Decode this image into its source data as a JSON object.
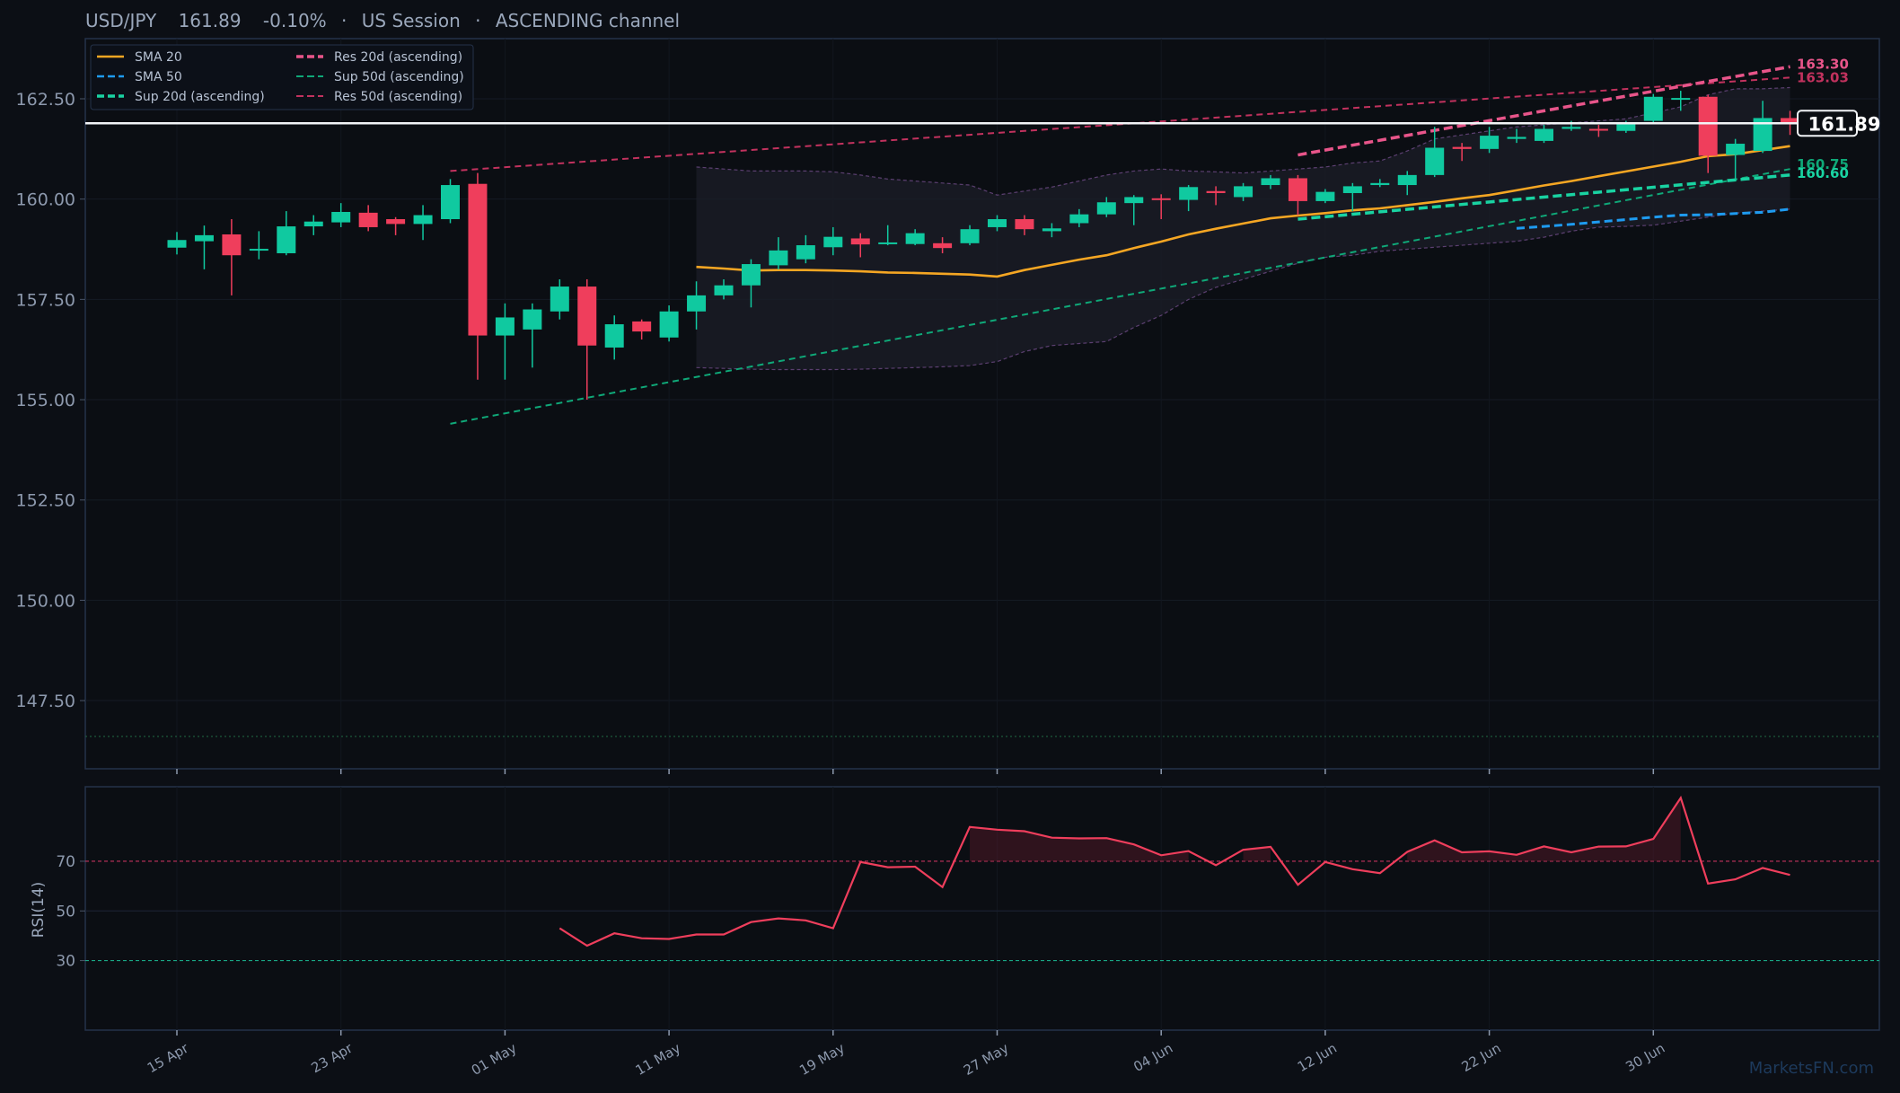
{
  "header": {
    "symbol": "USD/JPY",
    "price": "161.89",
    "change": "-0.10%",
    "session": "US Session",
    "channel": "ASCENDING channel"
  },
  "watermark": "MarketsFN.com",
  "price_badge": "161.89",
  "legend": [
    {
      "label": "SMA 20",
      "color": "#f5a623",
      "style": "solid"
    },
    {
      "label": "SMA 50",
      "color": "#1e9bf0",
      "style": "dashed"
    },
    {
      "label": "Sup 20d (ascending)",
      "color": "#19d3a2",
      "style": "dashed"
    },
    {
      "label": "Res 20d (ascending)",
      "color": "#e8558a",
      "style": "dashed"
    },
    {
      "label": "Sup 50d (ascending)",
      "color": "#0fa878",
      "style": "dashed"
    },
    {
      "label": "Res 50d (ascending)",
      "color": "#c2325e",
      "style": "dashed"
    }
  ],
  "right_labels": [
    {
      "text": "163.30",
      "y": 163.3,
      "color": "#e8558a"
    },
    {
      "text": "163.03",
      "y": 163.03,
      "color": "#c2325e"
    },
    {
      "text": "160.75",
      "y": 160.75,
      "color": "#0fa878"
    },
    {
      "text": "160.60",
      "y": 160.6,
      "color": "#19d3a2"
    }
  ],
  "colors": {
    "up": "#10c9a0",
    "down": "#ef3e5c",
    "background": "#0c0f15",
    "axis": "#8d99ad",
    "rsi_line": "#ef3e5c",
    "overbought": "#c2325e",
    "oversold": "#19a885"
  },
  "chart_data": {
    "type": "candlestick",
    "price_axis": {
      "ylim": [
        145.8,
        164.0
      ],
      "ticks": [
        "147.50",
        "150.00",
        "152.50",
        "155.00",
        "157.50",
        "160.00",
        "162.50"
      ],
      "tick_values": [
        147.5,
        150,
        152.5,
        155,
        157.5,
        160,
        162.5
      ]
    },
    "x_axis": {
      "ticks": [
        "15 Apr",
        "23 Apr",
        "01 May",
        "11 May",
        "19 May",
        "27 May",
        "04 Jun",
        "12 Jun",
        "22 Jun",
        "30 Jun"
      ],
      "tick_index": [
        0,
        6,
        12,
        18,
        24,
        30,
        36,
        42,
        48,
        54
      ],
      "n": 60
    },
    "last_price": 161.89,
    "candles": [
      [
        158.79,
        158.98,
        158.62,
        159.18
      ],
      [
        158.95,
        159.1,
        158.25,
        159.34
      ],
      [
        159.12,
        158.6,
        157.6,
        159.5
      ],
      [
        158.74,
        158.76,
        158.5,
        159.2
      ],
      [
        158.65,
        159.32,
        158.6,
        159.7
      ],
      [
        159.32,
        159.44,
        159.1,
        159.6
      ],
      [
        159.42,
        159.68,
        159.3,
        159.9
      ],
      [
        159.66,
        159.3,
        159.2,
        159.85
      ],
      [
        159.5,
        159.38,
        159.1,
        159.55
      ],
      [
        159.38,
        159.6,
        158.98,
        159.85
      ],
      [
        159.5,
        160.35,
        159.4,
        160.5
      ],
      [
        160.38,
        156.6,
        155.5,
        160.65
      ],
      [
        156.6,
        157.05,
        155.5,
        157.4
      ],
      [
        156.75,
        157.25,
        155.8,
        157.4
      ],
      [
        157.2,
        157.82,
        157.0,
        158.0
      ],
      [
        157.82,
        156.35,
        155.0,
        158.0
      ],
      [
        156.3,
        156.88,
        156.0,
        157.1
      ],
      [
        156.95,
        156.7,
        156.5,
        157.0
      ],
      [
        156.55,
        157.2,
        156.45,
        157.35
      ],
      [
        157.2,
        157.6,
        156.75,
        157.95
      ],
      [
        157.6,
        157.85,
        157.5,
        158.0
      ],
      [
        157.85,
        158.38,
        157.3,
        158.5
      ],
      [
        158.35,
        158.72,
        158.25,
        159.05
      ],
      [
        158.5,
        158.85,
        158.4,
        159.1
      ],
      [
        158.8,
        159.06,
        158.6,
        159.3
      ],
      [
        159.02,
        158.87,
        158.55,
        159.15
      ],
      [
        158.88,
        158.92,
        158.85,
        159.35
      ],
      [
        158.88,
        159.15,
        158.85,
        159.25
      ],
      [
        158.9,
        158.78,
        158.65,
        159.05
      ],
      [
        158.9,
        159.25,
        158.85,
        159.35
      ],
      [
        159.3,
        159.5,
        159.2,
        159.6
      ],
      [
        159.5,
        159.25,
        159.1,
        159.6
      ],
      [
        159.2,
        159.27,
        159.05,
        159.4
      ],
      [
        159.4,
        159.62,
        159.3,
        159.75
      ],
      [
        159.62,
        159.92,
        159.55,
        160.05
      ],
      [
        159.9,
        160.05,
        159.35,
        160.1
      ],
      [
        160.02,
        160.0,
        159.5,
        160.12
      ],
      [
        159.98,
        160.3,
        159.7,
        160.35
      ],
      [
        160.2,
        160.15,
        159.85,
        160.32
      ],
      [
        160.05,
        160.32,
        159.95,
        160.4
      ],
      [
        160.35,
        160.52,
        160.25,
        160.6
      ],
      [
        160.52,
        159.95,
        159.6,
        160.6
      ],
      [
        159.95,
        160.18,
        159.9,
        160.25
      ],
      [
        160.15,
        160.32,
        159.7,
        160.4
      ],
      [
        160.35,
        160.4,
        160.3,
        160.5
      ],
      [
        160.35,
        160.6,
        160.1,
        160.7
      ],
      [
        160.6,
        161.28,
        160.55,
        161.8
      ],
      [
        161.3,
        161.25,
        160.95,
        161.4
      ],
      [
        161.25,
        161.58,
        161.15,
        161.8
      ],
      [
        161.5,
        161.55,
        161.4,
        161.75
      ],
      [
        161.45,
        161.75,
        161.4,
        161.85
      ],
      [
        161.75,
        161.8,
        161.7,
        161.95
      ],
      [
        161.75,
        161.72,
        161.55,
        161.85
      ],
      [
        161.7,
        161.9,
        161.65,
        161.95
      ],
      [
        161.95,
        162.55,
        161.9,
        162.62
      ],
      [
        162.5,
        162.52,
        162.2,
        162.7
      ],
      [
        162.55,
        161.08,
        160.65,
        162.6
      ],
      [
        161.1,
        161.38,
        160.5,
        161.5
      ],
      [
        161.2,
        162.02,
        161.15,
        162.45
      ],
      [
        162.02,
        161.89,
        161.6,
        162.2
      ]
    ],
    "sma20": {
      "start": 19,
      "values": [
        158.31,
        158.27,
        158.22,
        158.23,
        158.23,
        158.22,
        158.2,
        158.17,
        158.16,
        158.14,
        158.12,
        158.07,
        158.23,
        158.36,
        158.49,
        158.6,
        158.78,
        158.94,
        159.12,
        159.26,
        159.39,
        159.52,
        159.59,
        159.65,
        159.72,
        159.77,
        159.85,
        159.93,
        160.02,
        160.1,
        160.22,
        160.34,
        160.45,
        160.57,
        160.69,
        160.81,
        160.93,
        161.07,
        161.12,
        161.22,
        161.32
      ]
    },
    "sma50": {
      "start": 49,
      "values": [
        159.27,
        159.32,
        159.37,
        159.43,
        159.49,
        159.55,
        159.6,
        159.61,
        159.64,
        159.67,
        159.75
      ]
    },
    "sup20": {
      "from": [
        41,
        159.5
      ],
      "to": [
        59,
        160.6
      ]
    },
    "res20": {
      "from": [
        41,
        161.1
      ],
      "to": [
        59,
        163.3
      ]
    },
    "sup50": {
      "from": [
        10,
        154.4
      ],
      "to": [
        59,
        160.75
      ]
    },
    "res50": {
      "from": [
        10,
        160.7
      ],
      "to": [
        59,
        163.03
      ]
    },
    "band": {
      "start": 19,
      "upper": [
        160.8,
        160.75,
        160.7,
        160.7,
        160.7,
        160.68,
        160.6,
        160.5,
        160.45,
        160.4,
        160.35,
        160.1,
        160.2,
        160.3,
        160.45,
        160.6,
        160.7,
        160.75,
        160.7,
        160.68,
        160.65,
        160.7,
        160.75,
        160.8,
        160.9,
        160.95,
        161.2,
        161.5,
        161.6,
        161.7,
        161.8,
        161.85,
        161.9,
        161.95,
        162.0,
        162.15,
        162.3,
        162.6,
        162.75,
        162.75,
        162.78
      ],
      "lower": [
        155.8,
        155.78,
        155.76,
        155.75,
        155.75,
        155.75,
        155.76,
        155.78,
        155.8,
        155.82,
        155.85,
        155.95,
        156.2,
        156.35,
        156.4,
        156.45,
        156.8,
        157.1,
        157.5,
        157.8,
        158.0,
        158.2,
        158.4,
        158.55,
        158.6,
        158.7,
        158.75,
        158.8,
        158.85,
        158.9,
        158.95,
        159.05,
        159.2,
        159.3,
        159.32,
        159.35,
        159.45,
        159.55,
        159.65,
        159.7,
        159.75
      ]
    },
    "rsi": {
      "label": "RSI(14)",
      "ticks": [
        "30",
        "50",
        "70"
      ],
      "tick_values": [
        30,
        50,
        70
      ],
      "ylim": [
        2,
        100
      ],
      "overbought": 70,
      "oversold": 30,
      "start": 14,
      "values": [
        43,
        36,
        41,
        39,
        38.7,
        40.5,
        40.5,
        45.5,
        47,
        46.2,
        43,
        69.7,
        67.6,
        67.8,
        59.6,
        83.8,
        82.7,
        82.1,
        79.5,
        79.2,
        79.3,
        76.8,
        72.4,
        74.1,
        68.4,
        74.6,
        75.8,
        60.5,
        69.7,
        66.8,
        65.2,
        73.8,
        78.4,
        73.6,
        74,
        72.6,
        76,
        73.6,
        75.9,
        76,
        79,
        95.5,
        61,
        62.7,
        67.3,
        64.5
      ]
    }
  }
}
